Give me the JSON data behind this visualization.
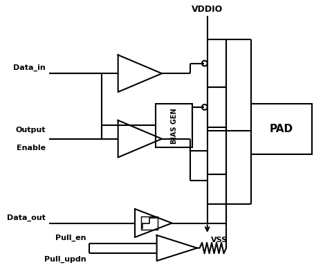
{
  "bg": "#ffffff",
  "lc": "#000000",
  "lw": 1.5,
  "labels": {
    "vddio": "VDDIO",
    "vss": "VSS",
    "data_in": "Data_in",
    "output_enable_1": "Output",
    "output_enable_2": "Enable",
    "data_out": "Data_out",
    "pull_en": "Pull_en",
    "pull_updn": "Pull_updn",
    "bias_gen": "BIAS GEN",
    "pad": "PAD"
  },
  "fig_w": 4.8,
  "fig_h": 3.99,
  "dpi": 100
}
